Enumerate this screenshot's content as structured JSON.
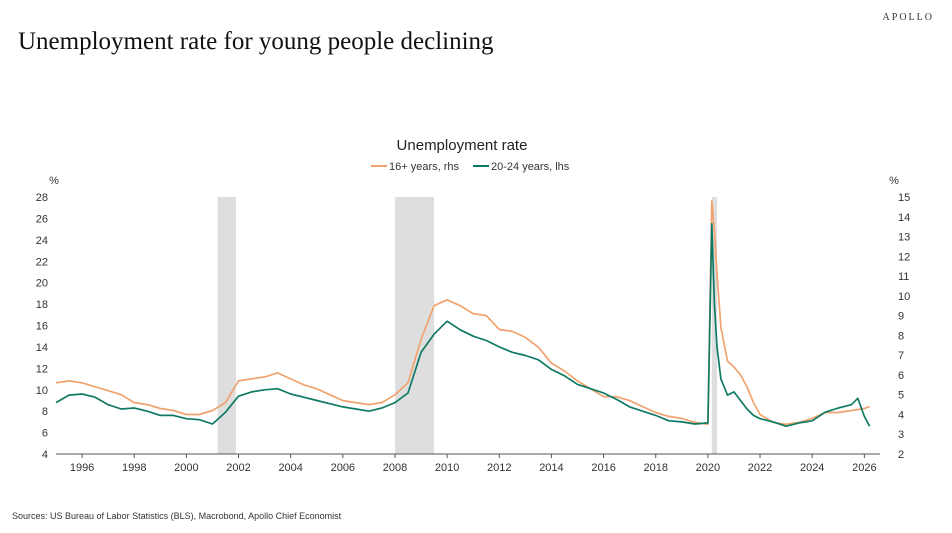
{
  "brand": "APOLLO",
  "title": "Unemployment rate for young people declining",
  "source": "Sources: US Bureau of Labor Statistics (BLS), Macrobond, Apollo Chief Economist",
  "chart_data": {
    "type": "line",
    "title": "Unemployment rate",
    "left_unit": "%",
    "right_unit": "%",
    "left_ylim": [
      4,
      28
    ],
    "left_ticks": [
      4,
      6,
      8,
      10,
      12,
      14,
      16,
      18,
      20,
      22,
      24,
      26,
      28
    ],
    "right_ylim": [
      2,
      15
    ],
    "right_ticks": [
      2,
      3,
      4,
      5,
      6,
      7,
      8,
      9,
      10,
      11,
      12,
      13,
      14,
      15
    ],
    "xlim": [
      1995.0,
      2026.6
    ],
    "x_ticks": [
      "1996",
      "1998",
      "2000",
      "2002",
      "2004",
      "2006",
      "2008",
      "2010",
      "2012",
      "2014",
      "2016",
      "2018",
      "2020",
      "2022",
      "2024",
      "2026"
    ],
    "grid": false,
    "legend_position": "top-center",
    "recessions": [
      [
        2001.2,
        2001.9
      ],
      [
        2008.0,
        2009.5
      ],
      [
        2020.15,
        2020.35
      ]
    ],
    "series": [
      {
        "name": "16+ years, rhs",
        "axis": "right",
        "color": "#f0a36e",
        "x": [
          1995.0,
          1995.5,
          1996.0,
          1996.5,
          1997.0,
          1997.5,
          1998.0,
          1998.5,
          1999.0,
          1999.5,
          2000.0,
          2000.5,
          2001.0,
          2001.5,
          2002.0,
          2002.5,
          2003.0,
          2003.5,
          2004.0,
          2004.5,
          2005.0,
          2005.5,
          2006.0,
          2006.5,
          2007.0,
          2007.5,
          2008.0,
          2008.5,
          2009.0,
          2009.5,
          2010.0,
          2010.5,
          2011.0,
          2011.5,
          2012.0,
          2012.5,
          2013.0,
          2013.5,
          2014.0,
          2014.5,
          2015.0,
          2015.5,
          2016.0,
          2016.5,
          2017.0,
          2017.5,
          2018.0,
          2018.5,
          2019.0,
          2019.5,
          2020.0,
          2020.15,
          2020.25,
          2020.35,
          2020.5,
          2020.75,
          2021.0,
          2021.25,
          2021.5,
          2021.75,
          2022.0,
          2022.5,
          2023.0,
          2023.5,
          2024.0,
          2024.5,
          2025.0,
          2025.5,
          2026.0,
          2026.2
        ],
        "values": [
          5.6,
          5.7,
          5.6,
          5.4,
          5.2,
          5.0,
          4.6,
          4.5,
          4.3,
          4.2,
          4.0,
          4.0,
          4.2,
          4.6,
          5.7,
          5.8,
          5.9,
          6.1,
          5.8,
          5.5,
          5.3,
          5.0,
          4.7,
          4.6,
          4.5,
          4.6,
          5.0,
          5.6,
          7.8,
          9.5,
          9.8,
          9.5,
          9.1,
          9.0,
          8.3,
          8.2,
          7.9,
          7.4,
          6.6,
          6.2,
          5.7,
          5.3,
          4.9,
          4.9,
          4.7,
          4.4,
          4.1,
          3.9,
          3.8,
          3.6,
          3.5,
          14.8,
          13.3,
          11.1,
          8.4,
          6.7,
          6.4,
          6.0,
          5.4,
          4.6,
          4.0,
          3.6,
          3.5,
          3.6,
          3.8,
          4.1,
          4.1,
          4.2,
          4.3,
          4.4
        ]
      },
      {
        "name": "20-24 years, lhs",
        "axis": "left",
        "color": "#0f7a63",
        "x": [
          1995.0,
          1995.5,
          1996.0,
          1996.5,
          1997.0,
          1997.5,
          1998.0,
          1998.5,
          1999.0,
          1999.5,
          2000.0,
          2000.5,
          2001.0,
          2001.5,
          2002.0,
          2002.5,
          2003.0,
          2003.5,
          2004.0,
          2004.5,
          2005.0,
          2005.5,
          2006.0,
          2006.5,
          2007.0,
          2007.5,
          2008.0,
          2008.5,
          2009.0,
          2009.5,
          2010.0,
          2010.5,
          2011.0,
          2011.5,
          2012.0,
          2012.5,
          2013.0,
          2013.5,
          2014.0,
          2014.5,
          2015.0,
          2015.5,
          2016.0,
          2016.5,
          2017.0,
          2017.5,
          2018.0,
          2018.5,
          2019.0,
          2019.5,
          2020.0,
          2020.15,
          2020.25,
          2020.35,
          2020.5,
          2020.75,
          2021.0,
          2021.25,
          2021.5,
          2021.75,
          2022.0,
          2022.5,
          2023.0,
          2023.5,
          2024.0,
          2024.5,
          2025.0,
          2025.5,
          2025.75,
          2026.0,
          2026.2
        ],
        "values": [
          8.8,
          9.5,
          9.6,
          9.3,
          8.6,
          8.2,
          8.3,
          8.0,
          7.6,
          7.6,
          7.3,
          7.2,
          6.8,
          7.9,
          9.4,
          9.8,
          10.0,
          10.1,
          9.6,
          9.3,
          9.0,
          8.7,
          8.4,
          8.2,
          8.0,
          8.3,
          8.8,
          9.7,
          13.5,
          15.2,
          16.4,
          15.6,
          15.0,
          14.6,
          14.0,
          13.5,
          13.2,
          12.8,
          11.9,
          11.3,
          10.5,
          10.1,
          9.7,
          9.1,
          8.4,
          8.0,
          7.6,
          7.1,
          7.0,
          6.8,
          6.9,
          25.5,
          18.0,
          14.0,
          11.0,
          9.5,
          9.8,
          9.0,
          8.2,
          7.6,
          7.3,
          7.0,
          6.6,
          6.9,
          7.1,
          7.9,
          8.3,
          8.6,
          9.2,
          7.5,
          6.6
        ]
      }
    ]
  }
}
